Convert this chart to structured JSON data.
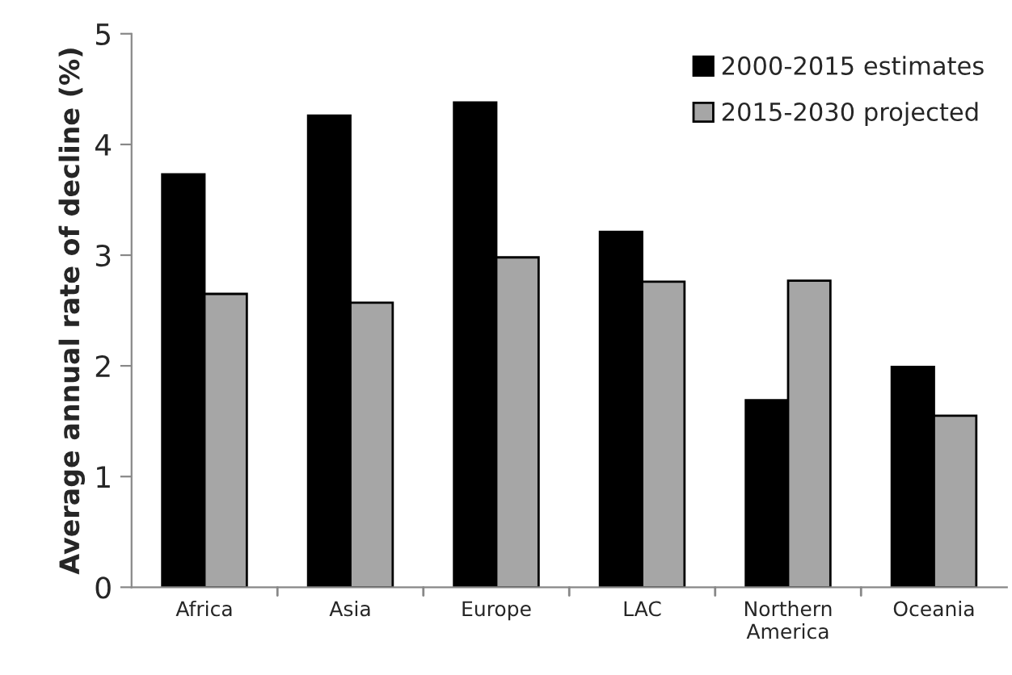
{
  "chart_data": {
    "type": "bar",
    "ylabel": "Average annual rate of decline (%)",
    "categories": [
      "Africa",
      "Asia",
      "Europe",
      "LAC",
      "Northern\nAmerica",
      "Oceania"
    ],
    "series": [
      {
        "name": "2000-2015 estimates",
        "color": "#000000",
        "values": [
          3.73,
          4.26,
          4.38,
          3.21,
          1.69,
          1.99
        ]
      },
      {
        "name": "2015-2030 projected",
        "color": "#a6a6a6",
        "values": [
          2.65,
          2.57,
          2.98,
          2.76,
          2.77,
          1.55
        ]
      }
    ],
    "ylim": [
      0,
      5
    ],
    "yticks": [
      0,
      1,
      2,
      3,
      4,
      5
    ],
    "grid": false,
    "legend": "top right"
  }
}
